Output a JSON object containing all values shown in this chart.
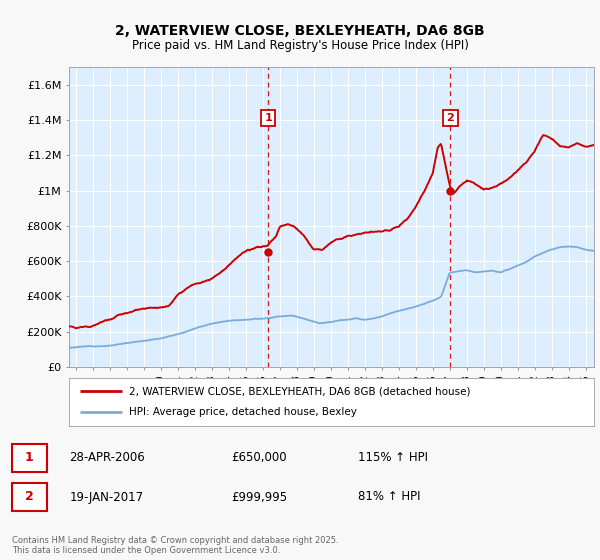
{
  "title1": "2, WATERVIEW CLOSE, BEXLEYHEATH, DA6 8GB",
  "title2": "Price paid vs. HM Land Registry's House Price Index (HPI)",
  "ylabel_ticks": [
    "£0",
    "£200K",
    "£400K",
    "£600K",
    "£800K",
    "£1M",
    "£1.2M",
    "£1.4M",
    "£1.6M"
  ],
  "ytick_vals": [
    0,
    200000,
    400000,
    600000,
    800000,
    1000000,
    1200000,
    1400000,
    1600000
  ],
  "ylim": [
    0,
    1700000
  ],
  "xlim_start": 1994.6,
  "xlim_end": 2025.5,
  "xticks": [
    1995,
    1996,
    1997,
    1998,
    1999,
    2000,
    2001,
    2002,
    2003,
    2004,
    2005,
    2006,
    2007,
    2008,
    2009,
    2010,
    2011,
    2012,
    2013,
    2014,
    2015,
    2016,
    2017,
    2018,
    2019,
    2020,
    2021,
    2022,
    2023,
    2024,
    2025
  ],
  "sale1_x": 2006.32,
  "sale1_y": 650000,
  "sale2_x": 2017.05,
  "sale2_y": 999995,
  "sale1_label": "1",
  "sale2_label": "2",
  "legend_red": "2, WATERVIEW CLOSE, BEXLEYHEATH, DA6 8GB (detached house)",
  "legend_blue": "HPI: Average price, detached house, Bexley",
  "table_row1": [
    "1",
    "28-APR-2006",
    "£650,000",
    "115% ↑ HPI"
  ],
  "table_row2": [
    "2",
    "19-JAN-2017",
    "£999,995",
    "81% ↑ HPI"
  ],
  "footnote": "Contains HM Land Registry data © Crown copyright and database right 2025.\nThis data is licensed under the Open Government Licence v3.0.",
  "red_color": "#cc0000",
  "blue_color": "#7aabdc",
  "plot_bg_color": "#ddeeff",
  "fig_bg_color": "#f8f8f8",
  "legend_bg": "#ffffff",
  "grid_color": "#ffffff"
}
